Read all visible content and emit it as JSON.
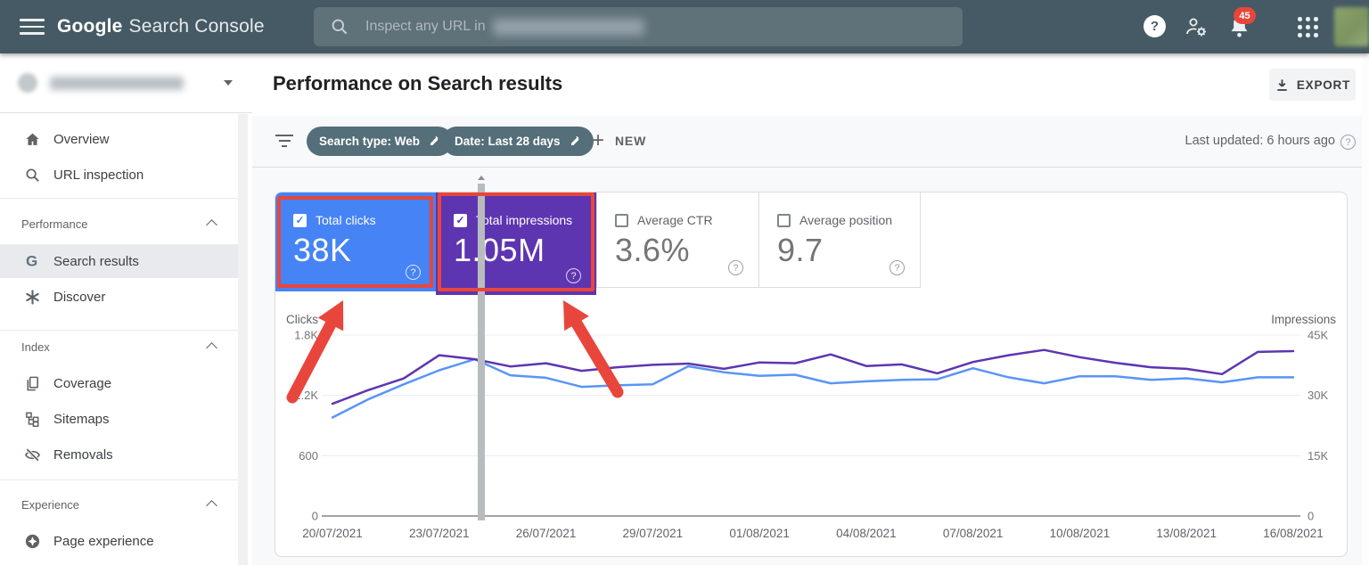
{
  "topbar": {
    "logo_part1": "Google",
    "logo_part2": "Search Console",
    "search_placeholder": "Inspect any URL in",
    "notifications_badge": "45"
  },
  "sidebar": {
    "sections": [
      {
        "header": "",
        "items": [
          {
            "label": "Overview",
            "icon": "home-icon"
          },
          {
            "label": "URL inspection",
            "icon": "search-icon"
          }
        ]
      },
      {
        "header": "Performance",
        "items": [
          {
            "label": "Search results",
            "icon": "google-g-icon",
            "selected": true
          },
          {
            "label": "Discover",
            "icon": "discover-icon"
          }
        ]
      },
      {
        "header": "Index",
        "items": [
          {
            "label": "Coverage",
            "icon": "coverage-icon"
          },
          {
            "label": "Sitemaps",
            "icon": "sitemap-icon"
          },
          {
            "label": "Removals",
            "icon": "eye-off-icon"
          }
        ]
      },
      {
        "header": "Experience",
        "items": [
          {
            "label": "Page experience",
            "icon": "page-experience-icon"
          }
        ]
      }
    ]
  },
  "page_header": {
    "title": "Performance on Search results",
    "export_label": "EXPORT"
  },
  "filter_bar": {
    "chips": [
      {
        "label": "Search type: Web"
      },
      {
        "label": "Date: Last 28 days"
      }
    ],
    "new_button": "NEW",
    "last_updated": "Last updated: 6 hours ago"
  },
  "metric_cards": [
    {
      "label": "Total clicks",
      "value": "38K",
      "checked": true,
      "color": "#4683f4",
      "annotated": true
    },
    {
      "label": "Total impressions",
      "value": "1.05M",
      "checked": true,
      "color": "#5e35b1",
      "annotated": true
    },
    {
      "label": "Average CTR",
      "value": "3.6%",
      "checked": false
    },
    {
      "label": "Average position",
      "value": "9.7",
      "checked": false
    }
  ],
  "annotations": {
    "color": "#e8463c"
  },
  "chart_data": {
    "type": "line",
    "x": [
      "20/07/2021",
      "21/07/2021",
      "22/07/2021",
      "23/07/2021",
      "24/07/2021",
      "25/07/2021",
      "26/07/2021",
      "27/07/2021",
      "28/07/2021",
      "29/07/2021",
      "30/07/2021",
      "31/07/2021",
      "01/08/2021",
      "02/08/2021",
      "03/08/2021",
      "04/08/2021",
      "05/08/2021",
      "06/08/2021",
      "07/08/2021",
      "08/08/2021",
      "09/08/2021",
      "10/08/2021",
      "11/08/2021",
      "12/08/2021",
      "13/08/2021",
      "14/08/2021",
      "15/08/2021",
      "16/08/2021"
    ],
    "x_tick_every": 3,
    "series": [
      {
        "name": "Clicks",
        "axis": "left",
        "color": "#5a95f5",
        "values": [
          980,
          1160,
          1310,
          1450,
          1560,
          1400,
          1375,
          1285,
          1300,
          1310,
          1490,
          1430,
          1395,
          1405,
          1320,
          1340,
          1355,
          1360,
          1470,
          1380,
          1320,
          1390,
          1390,
          1355,
          1370,
          1330,
          1380,
          1380
        ]
      },
      {
        "name": "Impressions",
        "axis": "right",
        "color": "#5e35b1",
        "values": [
          27900,
          31300,
          34200,
          40000,
          39000,
          37200,
          38000,
          36100,
          37000,
          37600,
          37900,
          36600,
          38200,
          38000,
          40200,
          37300,
          37700,
          35500,
          38300,
          40000,
          41300,
          39500,
          38100,
          37000,
          36600,
          35300,
          40800,
          41000
        ]
      }
    ],
    "left_axis": {
      "label": "Clicks",
      "ticks": [
        "1.8K",
        "1.2K",
        "600",
        "0"
      ],
      "range": [
        0,
        1800
      ]
    },
    "right_axis": {
      "label": "Impressions",
      "ticks": [
        "45K",
        "30K",
        "15K",
        "0"
      ],
      "range": [
        0,
        45000
      ]
    },
    "grid": true,
    "legend": "none"
  }
}
